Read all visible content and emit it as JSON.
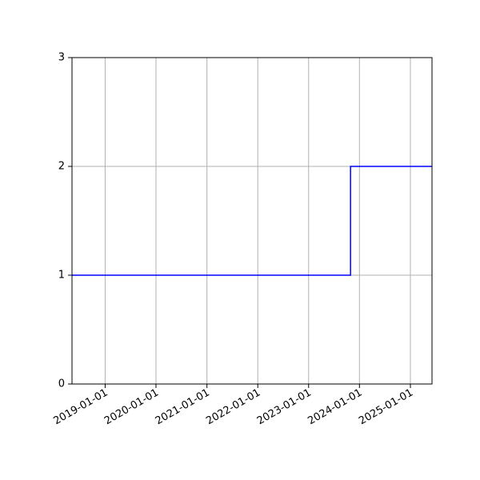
{
  "chart_data": {
    "type": "line",
    "step": "post",
    "title": "",
    "xlabel": "",
    "ylabel": "",
    "x_axis_type": "date",
    "xlim": [
      "2018-05-08",
      "2025-06-05"
    ],
    "ylim": [
      0,
      3
    ],
    "x_ticks": [
      "2019-01-01",
      "2020-01-01",
      "2021-01-01",
      "2022-01-01",
      "2023-01-01",
      "2024-01-01",
      "2025-01-01"
    ],
    "y_ticks": [
      0,
      1,
      2,
      3
    ],
    "grid": true,
    "line_color": "#0000ff",
    "grid_color": "#b0b0b0",
    "series": [
      {
        "x": [
          "2018-05-08",
          "2023-10-29",
          "2025-06-05"
        ],
        "y": [
          1,
          2,
          2
        ]
      }
    ]
  }
}
